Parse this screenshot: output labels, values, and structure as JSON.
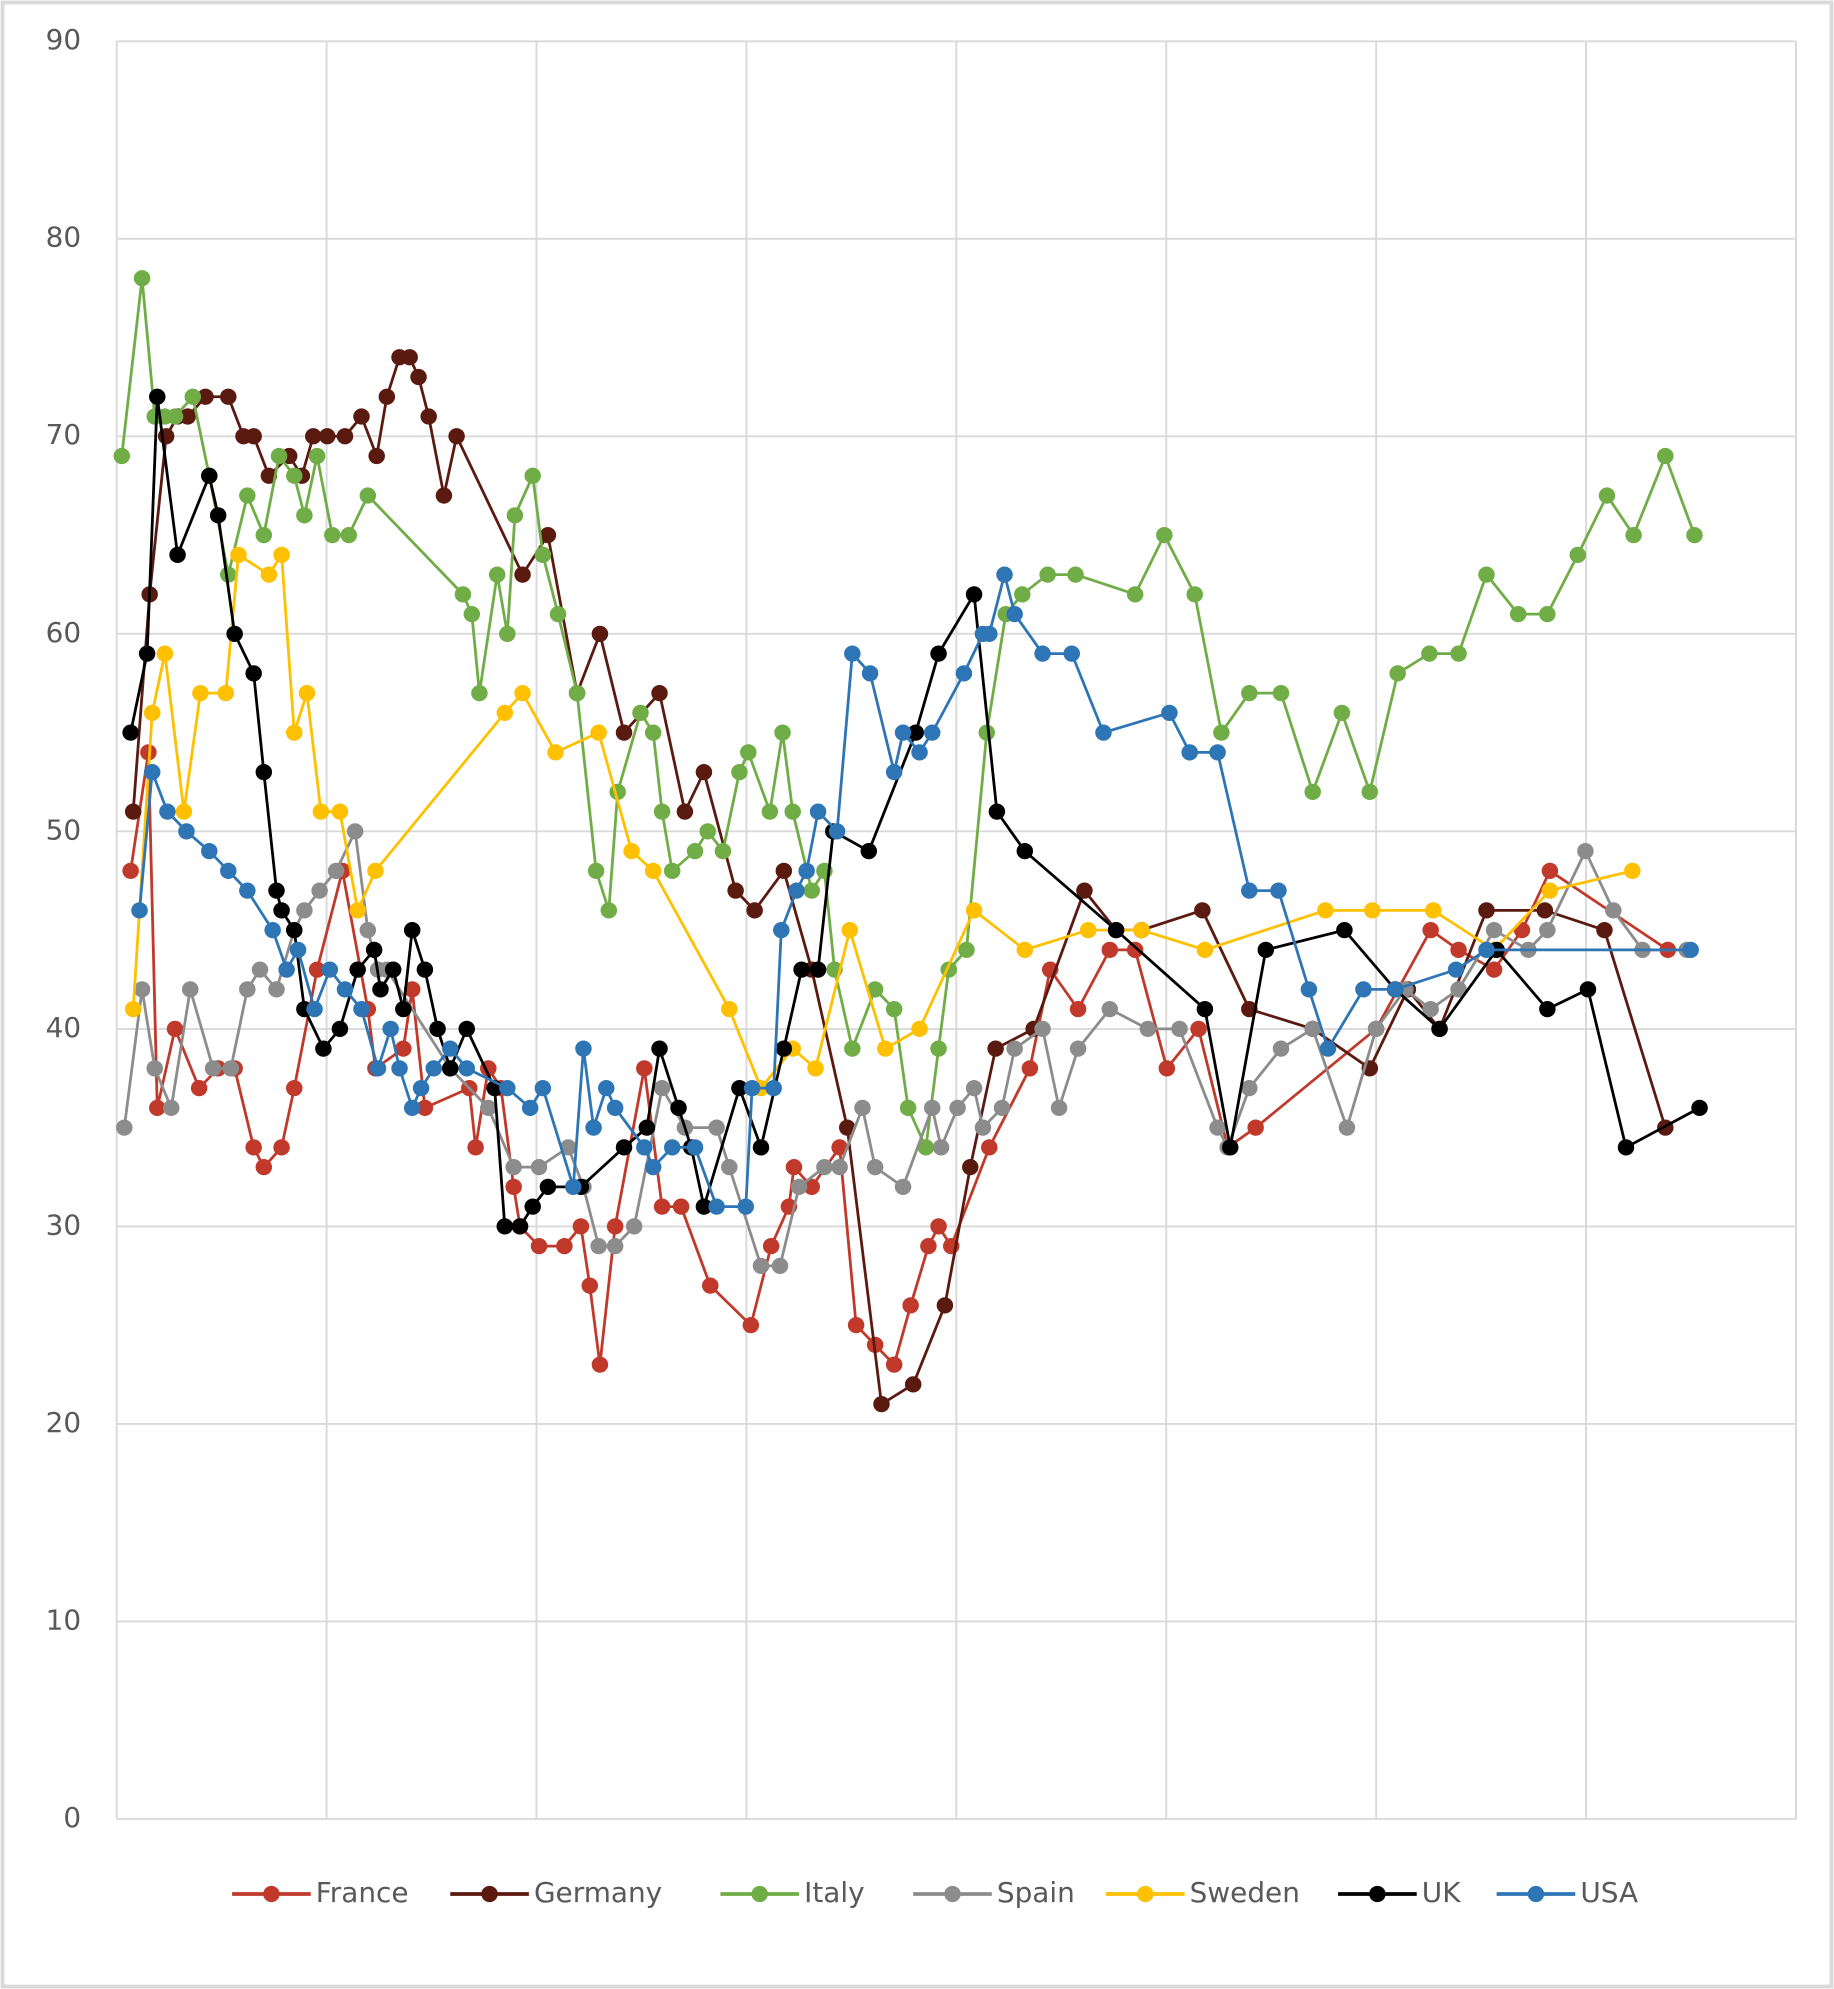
{
  "chart_data": {
    "type": "line",
    "xlim": [
      0,
      1324
    ],
    "xticks": [
      0,
      165.5,
      331,
      496.5,
      662,
      827.5,
      993,
      1158.5,
      1324
    ],
    "ylim": [
      0,
      90
    ],
    "yticks": [
      0,
      10,
      20,
      30,
      40,
      50,
      60,
      70,
      80,
      90
    ],
    "grid": true,
    "legend": "bottom",
    "series": [
      {
        "name": "France",
        "color": "#c0392b",
        "x": [
          11,
          25,
          32,
          46,
          65,
          80,
          93,
          108,
          116,
          130,
          140,
          158,
          178,
          198,
          204,
          226,
          233,
          243,
          278,
          283,
          293,
          303,
          313,
          318,
          333,
          353,
          366,
          373,
          381,
          393,
          416,
          430,
          445,
          468,
          500,
          516,
          530,
          534,
          548,
          570,
          583,
          598,
          613,
          626,
          640,
          648,
          658,
          688,
          720,
          736,
          758,
          783,
          803,
          828,
          853,
          876,
          898,
          993,
          1036,
          1058,
          1086,
          1108,
          1130,
          1223
        ],
        "values": [
          48,
          54,
          36,
          40,
          37,
          38,
          38,
          34,
          33,
          34,
          37,
          43,
          48,
          41,
          38,
          39,
          42,
          36,
          37,
          34,
          38,
          37,
          32,
          30,
          29,
          29,
          30,
          27,
          23,
          30,
          38,
          31,
          31,
          27,
          25,
          29,
          31,
          33,
          32,
          34,
          25,
          24,
          23,
          26,
          29,
          30,
          29,
          34,
          38,
          43,
          41,
          44,
          44,
          38,
          40,
          34,
          35,
          40,
          45,
          44,
          43,
          45,
          48,
          44
        ]
      },
      {
        "name": "Germany",
        "color": "#5b1a10",
        "x": [
          13,
          26,
          39,
          48,
          56,
          70,
          88,
          100,
          108,
          120,
          136,
          146,
          155,
          166,
          180,
          193,
          205,
          213,
          223,
          231,
          238,
          246,
          258,
          268,
          320,
          340,
          363,
          381,
          400,
          428,
          448,
          463,
          488,
          503,
          526,
          548,
          576,
          603,
          628,
          653,
          673,
          693,
          723,
          763,
          788,
          808,
          856,
          893,
          943,
          988,
          1018,
          1043,
          1080,
          1126,
          1173,
          1221
        ],
        "values": [
          51,
          62,
          70,
          71,
          71,
          72,
          72,
          70,
          70,
          68,
          69,
          68,
          70,
          70,
          70,
          71,
          69,
          72,
          74,
          74,
          73,
          71,
          67,
          70,
          63,
          65,
          57,
          60,
          55,
          57,
          51,
          53,
          47,
          46,
          48,
          43,
          35,
          21,
          22,
          26,
          33,
          39,
          40,
          47,
          45,
          45,
          46,
          41,
          40,
          38,
          42,
          40,
          46,
          46,
          45,
          35
        ]
      },
      {
        "name": "Italy",
        "color": "#70ad47",
        "x": [
          4,
          20,
          30,
          38,
          46,
          60,
          73,
          88,
          103,
          116,
          128,
          140,
          148,
          158,
          170,
          183,
          198,
          273,
          280,
          286,
          300,
          308,
          314,
          328,
          336,
          348,
          363,
          378,
          388,
          395,
          413,
          423,
          430,
          438,
          456,
          466,
          478,
          491,
          498,
          515,
          525,
          533,
          548,
          558,
          566,
          580,
          598,
          613,
          624,
          638,
          648,
          656,
          670,
          686,
          701,
          714,
          734,
          756,
          803,
          826,
          850,
          871,
          893,
          918,
          943,
          966,
          988,
          1010,
          1035,
          1058,
          1080,
          1105,
          1128,
          1152,
          1175,
          1196,
          1221,
          1244
        ],
        "values": [
          69,
          78,
          71,
          71,
          71,
          72,
          68,
          63,
          67,
          65,
          69,
          68,
          66,
          69,
          65,
          65,
          67,
          62,
          61,
          57,
          63,
          60,
          66,
          68,
          64,
          61,
          57,
          48,
          46,
          52,
          56,
          55,
          51,
          48,
          49,
          50,
          49,
          53,
          54,
          51,
          55,
          51,
          47,
          48,
          43,
          39,
          42,
          41,
          36,
          34,
          39,
          43,
          44,
          55,
          61,
          62,
          63,
          63,
          62,
          65,
          62,
          55,
          57,
          57,
          52,
          56,
          52,
          58,
          59,
          59,
          63,
          61,
          61,
          64,
          67,
          65,
          69,
          65
        ]
      },
      {
        "name": "Spain",
        "color": "#8c8c8c",
        "x": [
          6,
          20,
          30,
          43,
          58,
          76,
          90,
          103,
          113,
          126,
          140,
          148,
          160,
          173,
          188,
          198,
          206,
          213,
          263,
          293,
          313,
          333,
          356,
          368,
          380,
          393,
          408,
          430,
          448,
          473,
          483,
          508,
          523,
          538,
          558,
          570,
          588,
          598,
          620,
          643,
          650,
          663,
          676,
          683,
          698,
          708,
          730,
          743,
          758,
          783,
          813,
          838,
          868,
          876,
          893,
          918,
          943,
          970,
          993,
          1016,
          1036,
          1058,
          1086,
          1113,
          1128,
          1158,
          1180,
          1203,
          1238
        ],
        "values": [
          35,
          42,
          38,
          36,
          42,
          38,
          38,
          42,
          43,
          42,
          45,
          46,
          47,
          48,
          50,
          45,
          43,
          43,
          38,
          36,
          33,
          33,
          34,
          32,
          29,
          29,
          30,
          37,
          35,
          35,
          33,
          28,
          28,
          32,
          33,
          33,
          36,
          33,
          32,
          36,
          34,
          36,
          37,
          35,
          36,
          39,
          40,
          36,
          39,
          41,
          40,
          40,
          35,
          34,
          37,
          39,
          40,
          35,
          40,
          42,
          41,
          42,
          45,
          44,
          45,
          49,
          46,
          44,
          44
        ]
      },
      {
        "name": "Sweden",
        "color": "#ffc000",
        "x": [
          13,
          28,
          38,
          53,
          66,
          86,
          96,
          120,
          130,
          140,
          150,
          161,
          176,
          190,
          204,
          306,
          320,
          346,
          380,
          406,
          423,
          483,
          508,
          533,
          551,
          578,
          606,
          633,
          676,
          716,
          766,
          808,
          858,
          953,
          990,
          1038,
          1086,
          1130,
          1195
        ],
        "values": [
          41,
          56,
          59,
          51,
          57,
          57,
          64,
          63,
          64,
          55,
          57,
          51,
          51,
          46,
          48,
          56,
          57,
          54,
          55,
          49,
          48,
          41,
          37,
          39,
          38,
          45,
          39,
          40,
          46,
          44,
          45,
          45,
          44,
          46,
          46,
          46,
          44,
          47,
          48
        ]
      },
      {
        "name": "UK",
        "color": "#000000",
        "x": [
          11,
          24,
          32,
          48,
          73,
          80,
          93,
          108,
          116,
          126,
          130,
          140,
          148,
          163,
          176,
          190,
          203,
          208,
          218,
          226,
          233,
          243,
          253,
          263,
          276,
          298,
          306,
          318,
          328,
          340,
          366,
          400,
          418,
          428,
          443,
          453,
          463,
          491,
          508,
          526,
          540,
          553,
          565,
          593,
          630,
          648,
          676,
          694,
          716,
          788,
          858,
          878,
          906,
          968,
          1008,
          1043,
          1088,
          1128,
          1160,
          1190,
          1248
        ],
        "values": [
          55,
          59,
          72,
          64,
          68,
          66,
          60,
          58,
          53,
          47,
          46,
          45,
          41,
          39,
          40,
          43,
          44,
          42,
          43,
          41,
          45,
          43,
          40,
          38,
          40,
          37,
          30,
          30,
          31,
          32,
          32,
          34,
          35,
          39,
          36,
          34,
          31,
          37,
          34,
          39,
          43,
          43,
          50,
          49,
          55,
          59,
          62,
          51,
          49,
          45,
          41,
          34,
          44,
          45,
          42,
          40,
          44,
          41,
          42,
          34,
          36
        ]
      },
      {
        "name": "USA",
        "color": "#2e75b6",
        "x": [
          18,
          28,
          40,
          55,
          73,
          88,
          103,
          123,
          134,
          143,
          156,
          168,
          180,
          193,
          206,
          216,
          223,
          233,
          240,
          250,
          263,
          276,
          308,
          326,
          336,
          360,
          368,
          376,
          386,
          393,
          416,
          423,
          438,
          456,
          473,
          496,
          501,
          518,
          524,
          536,
          544,
          553,
          568,
          580,
          594,
          613,
          620,
          633,
          643,
          668,
          683,
          688,
          700,
          708,
          730,
          753,
          778,
          830,
          846,
          868,
          893,
          916,
          940,
          955,
          983,
          1008,
          1056,
          1080,
          1241
        ],
        "values": [
          46,
          53,
          51,
          50,
          49,
          48,
          47,
          45,
          43,
          44,
          41,
          43,
          42,
          41,
          38,
          40,
          38,
          36,
          37,
          38,
          39,
          38,
          37,
          36,
          37,
          32,
          39,
          35,
          37,
          36,
          34,
          33,
          34,
          34,
          31,
          31,
          37,
          37,
          45,
          47,
          48,
          51,
          50,
          59,
          58,
          53,
          55,
          54,
          55,
          58,
          60,
          60,
          63,
          61,
          59,
          59,
          55,
          56,
          54,
          54,
          47,
          47,
          42,
          39,
          42,
          42,
          43,
          44,
          44
        ]
      }
    ]
  }
}
